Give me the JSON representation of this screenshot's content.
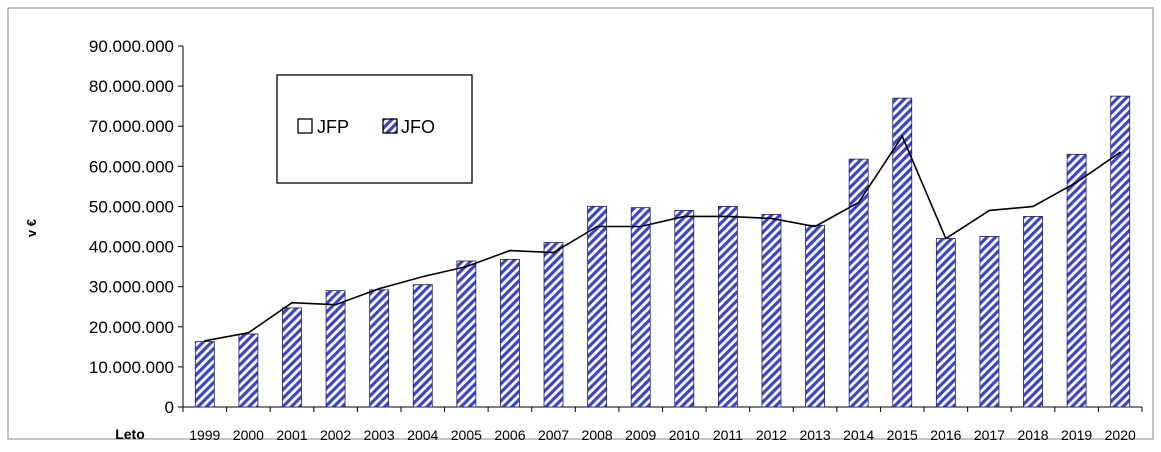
{
  "chart_data": {
    "type": "bar",
    "title": "",
    "xlabel": "Leto",
    "ylabel": "v €",
    "ylim": [
      0,
      90000000
    ],
    "yticks": [
      0,
      10000000,
      20000000,
      30000000,
      40000000,
      50000000,
      60000000,
      70000000,
      80000000,
      90000000
    ],
    "ytick_labels": [
      "0",
      "10.000.000",
      "20.000.000",
      "30.000.000",
      "40.000.000",
      "50.000.000",
      "60.000.000",
      "70.000.000",
      "80.000.000",
      "90.000.000"
    ],
    "categories": [
      "1999",
      "2000",
      "2001",
      "2002",
      "2003",
      "2004",
      "2005",
      "2006",
      "2007",
      "2008",
      "2009",
      "2010",
      "2011",
      "2012",
      "2013",
      "2014",
      "2015",
      "2016",
      "2017",
      "2018",
      "2019",
      "2020"
    ],
    "legend_position": "top-left",
    "grid": false,
    "series": [
      {
        "name": "JFP",
        "kind": "line",
        "color": "#000000",
        "values": [
          16500000,
          18500000,
          26000000,
          25500000,
          29500000,
          32500000,
          35000000,
          39000000,
          38500000,
          45000000,
          45000000,
          47500000,
          47500000,
          47000000,
          45000000,
          51000000,
          67500000,
          42000000,
          49000000,
          50000000,
          56000000,
          63500000
        ]
      },
      {
        "name": "JFO",
        "kind": "bar",
        "color": "#3b45c8",
        "hatch": true,
        "values": [
          16300000,
          18200000,
          24700000,
          29000000,
          29200000,
          30500000,
          36400000,
          36800000,
          41000000,
          50000000,
          49700000,
          49000000,
          50000000,
          48000000,
          45300000,
          61800000,
          77000000,
          42000000,
          42500000,
          47500000,
          63000000,
          77500000
        ]
      }
    ]
  }
}
